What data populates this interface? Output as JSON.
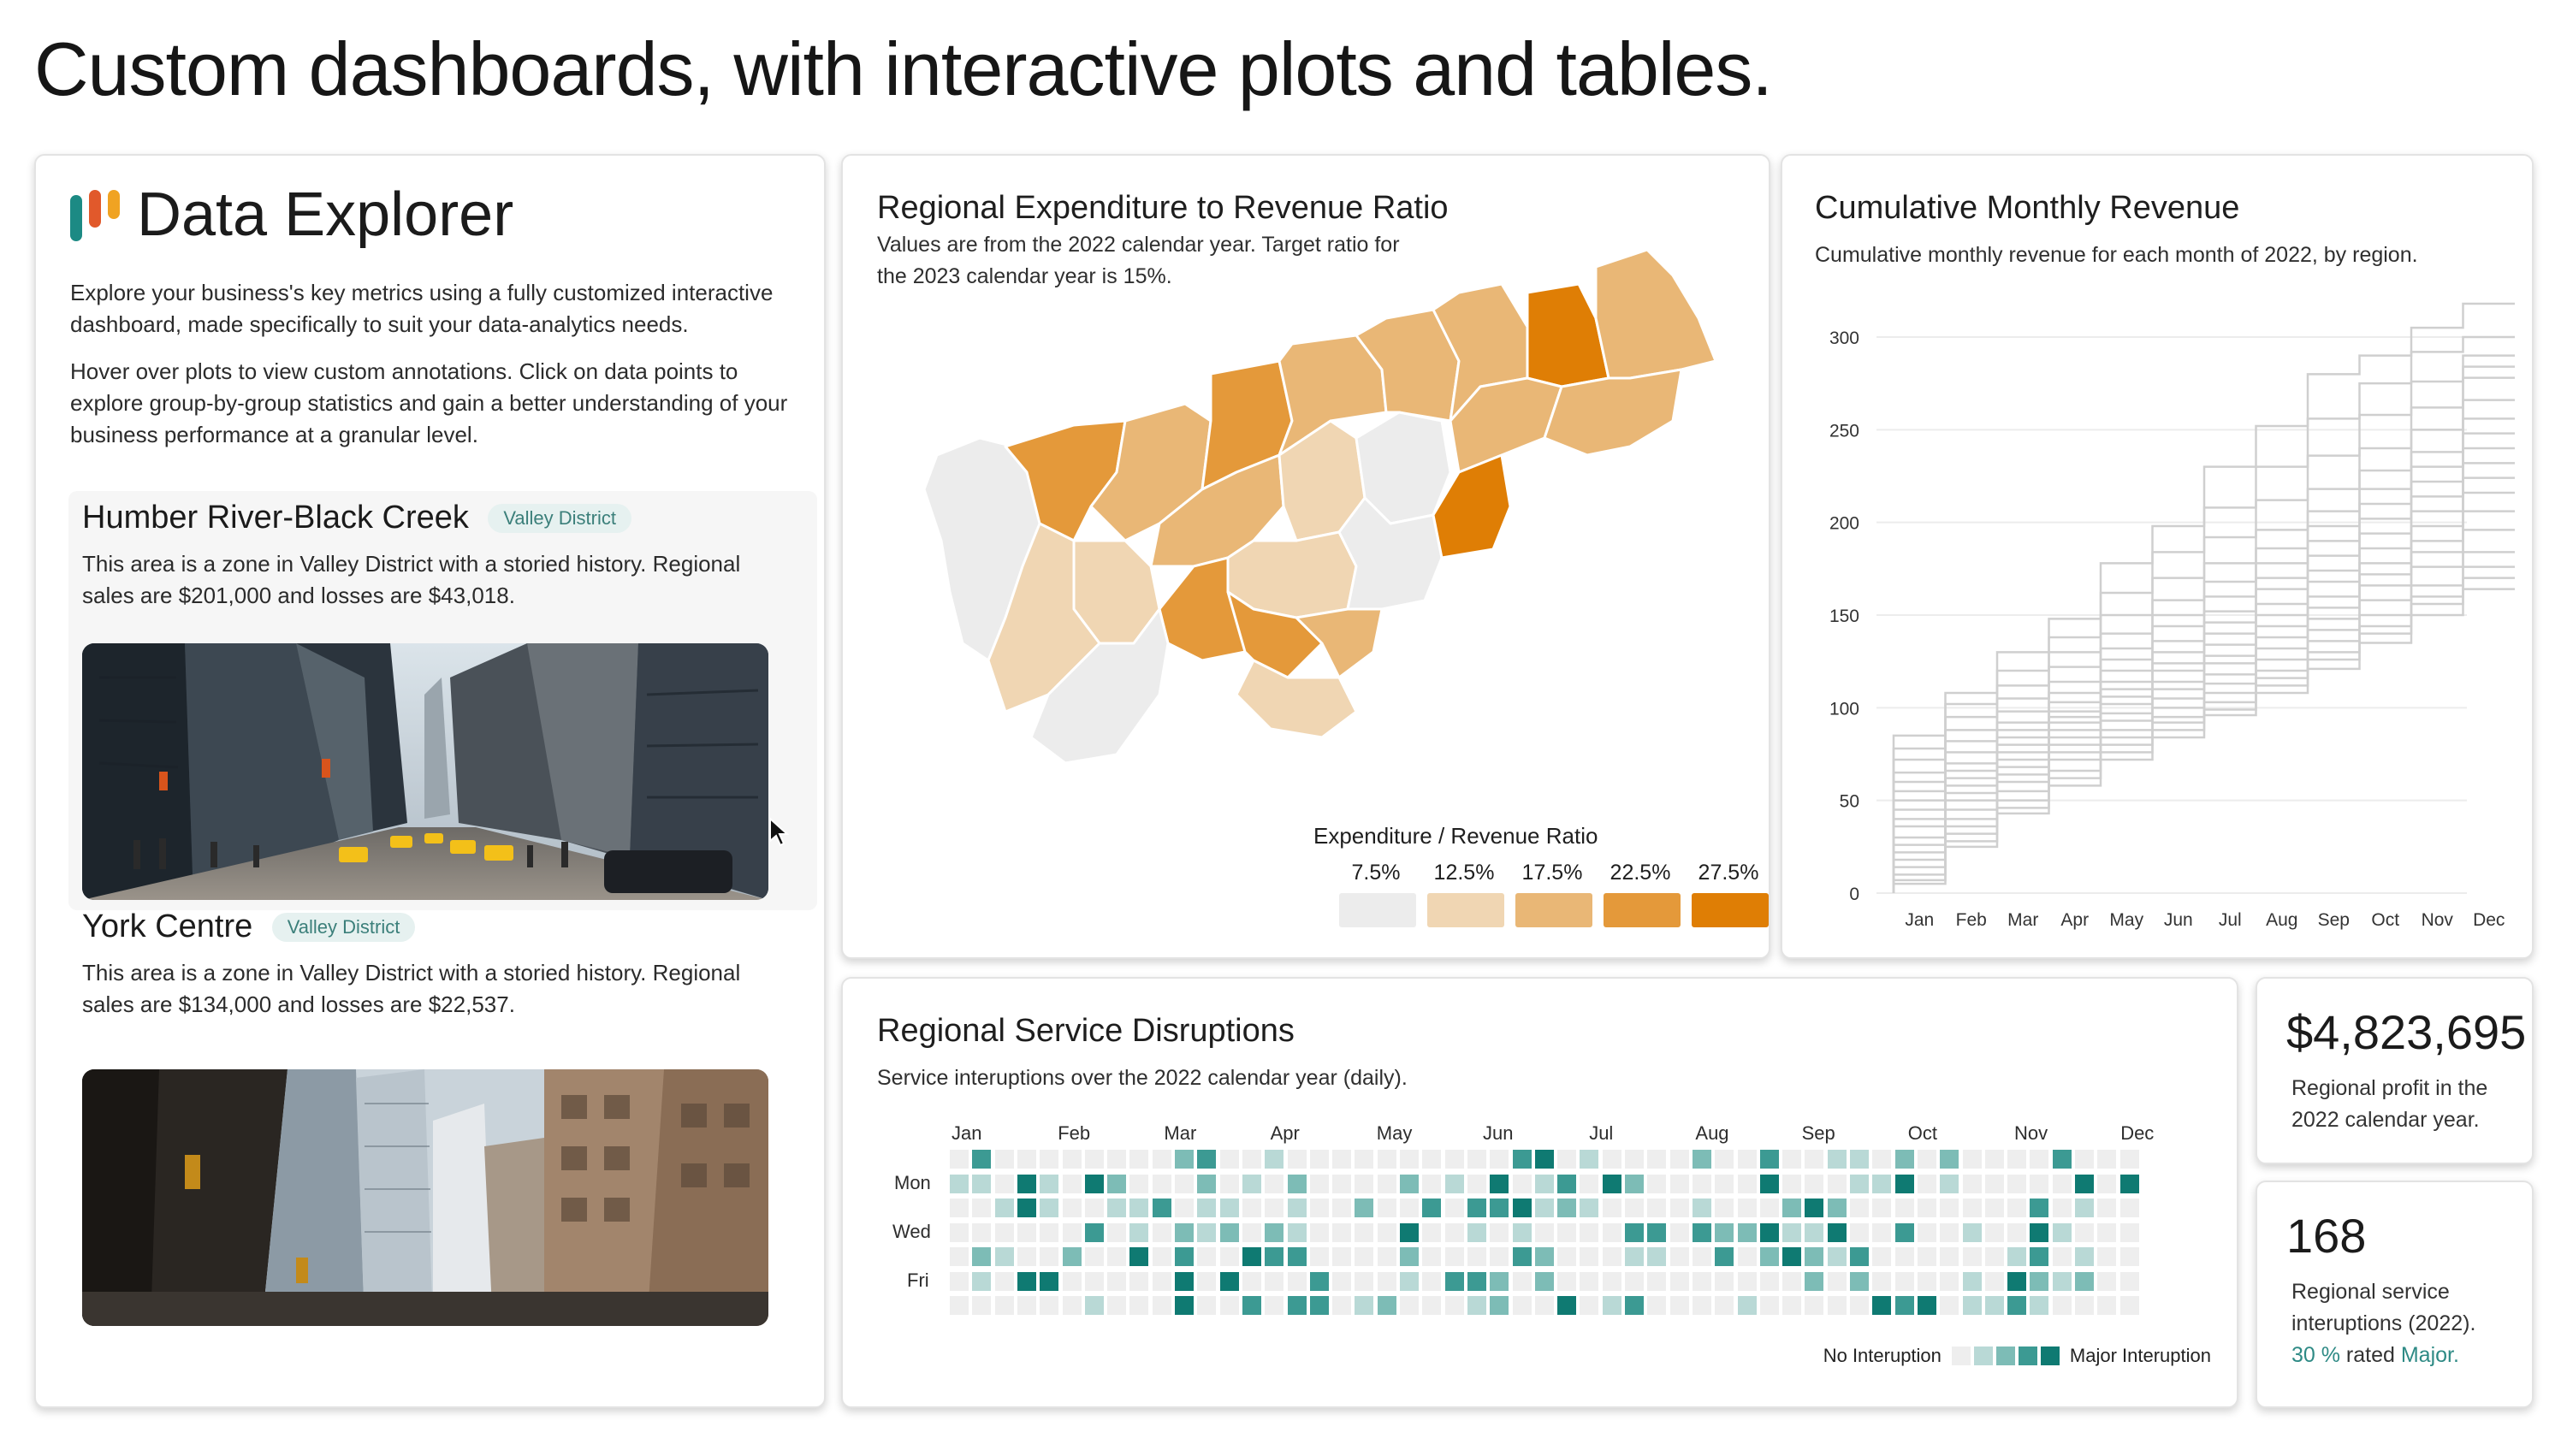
{
  "headline": "Custom dashboards, with interactive plots and tables.",
  "explorer": {
    "title": "Data Explorer",
    "logo_colors": [
      "#1c8a84",
      "#e1592b",
      "#f0a322"
    ],
    "paragraph1": "Explore your business's key metrics using a fully customized interactive dashboard, made specifically to suit your data-analytics needs.",
    "paragraph2": "Hover over plots to view custom annotations. Click on data points to explore group-by-group statistics and gain a better understanding of your business performance at a granular level.",
    "areas": [
      {
        "name": "Humber River-Black Creek",
        "badge": "Valley District",
        "description": "This area is a zone in Valley District with a storied history. Regional sales are $201,000 and losses are $43,018.",
        "photo": "city-street-photo"
      },
      {
        "name": "York Centre",
        "badge": "Valley District",
        "description": "This area is a zone in Valley District with a storied history. Regional sales are $134,000 and losses are $22,537.",
        "photo": "skyscraper-photo"
      }
    ]
  },
  "map_card": {
    "title": "Regional Expenditure to Revenue Ratio",
    "subtitle": "Values are from the 2022 calendar year. Target ratio for the 2023 calendar year is 15%.",
    "legend_title": "Expenditure / Revenue Ratio",
    "legend": [
      {
        "label": "7.5%",
        "color": "#ececec"
      },
      {
        "label": "12.5%",
        "color": "#f0d6b3"
      },
      {
        "label": "17.5%",
        "color": "#e9b776"
      },
      {
        "label": "22.5%",
        "color": "#e4993a"
      },
      {
        "label": "27.5%",
        "color": "#df7e05"
      }
    ]
  },
  "revenue_card": {
    "title": "Cumulative Monthly Revenue",
    "subtitle": "Cumulative monthly revenue for each month of 2022, by region."
  },
  "chart_data": {
    "type": "line",
    "title": "Cumulative Monthly Revenue",
    "subtitle": "Cumulative monthly revenue for each month of 2022, by region.",
    "xlabel": "",
    "ylabel": "",
    "categories": [
      "Jan",
      "Feb",
      "Mar",
      "Apr",
      "May",
      "Jun",
      "Jul",
      "Aug",
      "Sep",
      "Oct",
      "Nov",
      "Dec"
    ],
    "yticks": [
      0,
      50,
      100,
      150,
      200,
      250,
      300
    ],
    "ylim": [
      0,
      320
    ],
    "grid": true,
    "step": true,
    "line_color": "#cfcfcf",
    "series": [
      {
        "values": [
          85,
          108,
          130,
          148,
          178,
          198,
          230,
          252,
          280,
          290,
          305,
          318
        ]
      },
      {
        "values": [
          78,
          102,
          120,
          138,
          162,
          184,
          208,
          230,
          256,
          275,
          292,
          300
        ]
      },
      {
        "values": [
          72,
          95,
          112,
          130,
          150,
          170,
          192,
          212,
          236,
          258,
          276,
          290
        ]
      },
      {
        "values": [
          65,
          88,
          105,
          122,
          140,
          158,
          178,
          196,
          218,
          240,
          262,
          284
        ]
      },
      {
        "values": [
          60,
          82,
          98,
          114,
          132,
          150,
          168,
          186,
          206,
          228,
          250,
          278
        ]
      },
      {
        "values": [
          55,
          76,
          92,
          108,
          126,
          144,
          160,
          178,
          198,
          218,
          238,
          266
        ]
      },
      {
        "values": [
          50,
          70,
          88,
          103,
          120,
          136,
          152,
          170,
          190,
          210,
          230,
          256
        ]
      },
      {
        "values": [
          45,
          66,
          84,
          98,
          114,
          130,
          146,
          164,
          182,
          202,
          222,
          248
        ]
      },
      {
        "values": [
          40,
          62,
          80,
          95,
          110,
          124,
          140,
          156,
          174,
          194,
          214,
          240
        ]
      },
      {
        "values": [
          36,
          58,
          76,
          92,
          106,
          120,
          134,
          150,
          168,
          186,
          206,
          232
        ]
      },
      {
        "values": [
          30,
          54,
          72,
          88,
          102,
          114,
          128,
          144,
          160,
          178,
          198,
          224
        ]
      },
      {
        "values": [
          26,
          50,
          68,
          84,
          97,
          110,
          124,
          138,
          154,
          172,
          190,
          216
        ]
      },
      {
        "values": [
          22,
          45,
          64,
          80,
          93,
          105,
          118,
          132,
          148,
          166,
          184,
          206
        ]
      },
      {
        "values": [
          18,
          40,
          60,
          76,
          88,
          100,
          113,
          126,
          142,
          158,
          176,
          196
        ]
      },
      {
        "values": [
          14,
          36,
          55,
          72,
          84,
          95,
          108,
          120,
          136,
          150,
          166,
          184
        ]
      },
      {
        "values": [
          10,
          32,
          50,
          66,
          80,
          92,
          103,
          116,
          130,
          144,
          160,
          176
        ]
      },
      {
        "values": [
          7,
          28,
          46,
          62,
          76,
          88,
          99,
          112,
          126,
          140,
          156,
          170
        ]
      },
      {
        "values": [
          5,
          25,
          43,
          58,
          72,
          84,
          96,
          108,
          121,
          135,
          150,
          164
        ]
      }
    ]
  },
  "disruptions_card": {
    "title": "Regional Service Disruptions",
    "subtitle": "Service interuptions over the 2022 calendar year (daily).",
    "months": [
      "Jan",
      "Feb",
      "Mar",
      "Apr",
      "May",
      "Jun",
      "Jul",
      "Aug",
      "Sep",
      "Oct",
      "Nov",
      "Dec"
    ],
    "days": [
      "Mon",
      "Wed",
      "Fri"
    ],
    "legend_low": "No Interuption",
    "legend_high": "Major Interuption",
    "scale_colors": [
      "#eeeeee",
      "#b9d9d6",
      "#7dbcb6",
      "#3c9a93",
      "#0f7a72"
    ]
  },
  "kpi_profit": {
    "value": "$4,823,695",
    "text": "Regional profit in the 2022 calendar year."
  },
  "kpi_disruptions": {
    "value": "168",
    "text": "Regional service interuptions (2022).",
    "pct": "30 %",
    "rated": " rated ",
    "major": "Major."
  }
}
